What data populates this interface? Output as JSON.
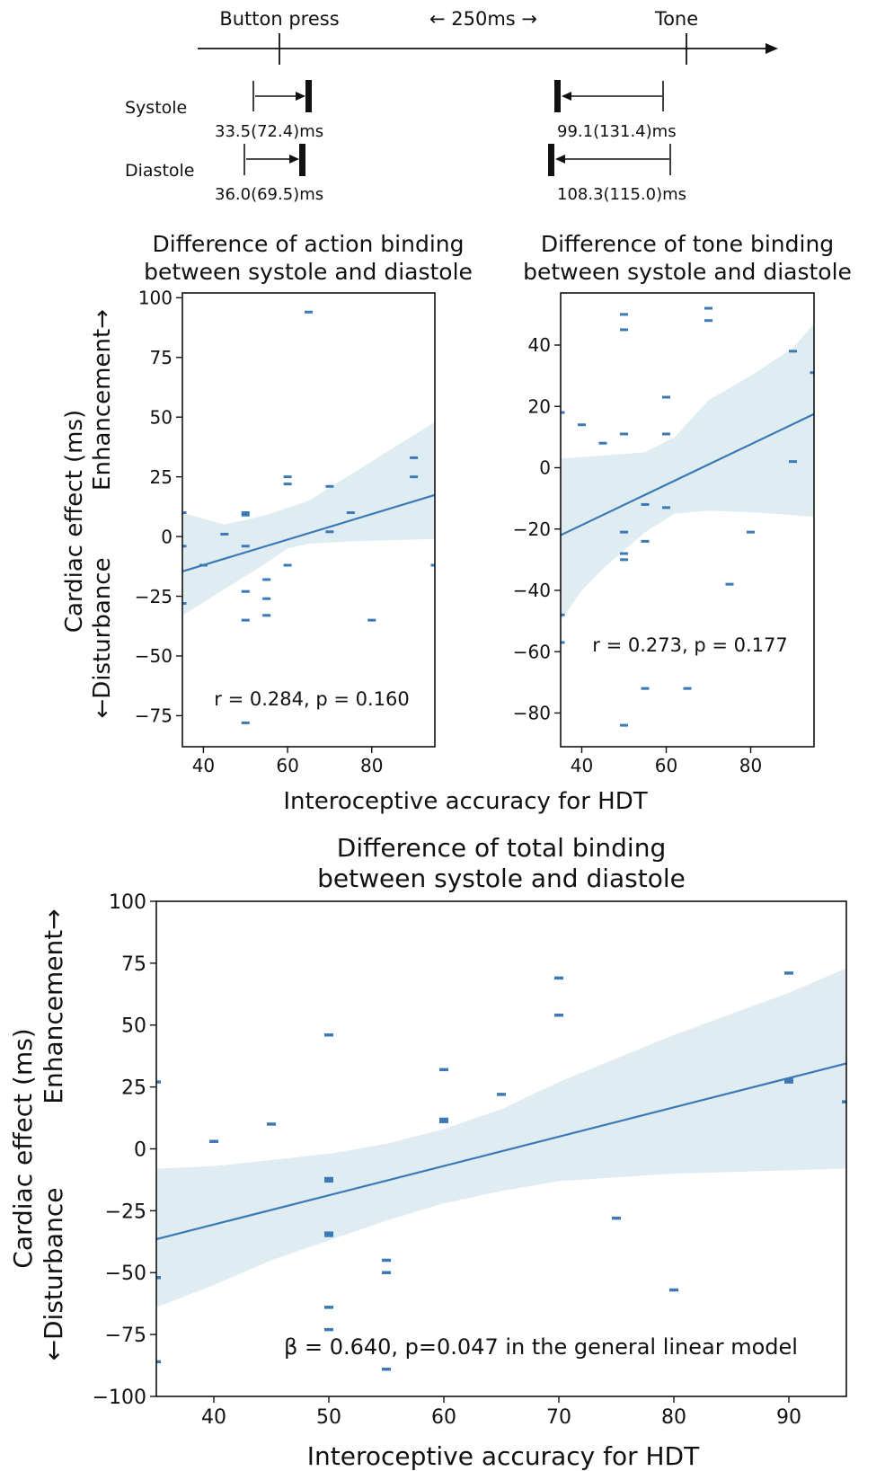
{
  "timeline": {
    "button_label": "Button press",
    "interval_label": "← 250ms →",
    "tone_label": "Tone",
    "systole_label": "Systole",
    "diastole_label": "Diastole",
    "systole_action": "33.5(72.4)ms",
    "systole_tone": "99.1(131.4)ms",
    "diastole_action": "36.0(69.5)ms",
    "diastole_tone": "108.3(115.0)ms"
  },
  "shared": {
    "ylabel_line1": "Cardiac effect (ms)",
    "ylabel_line2_top": "Enhancement→",
    "ylabel_line2_bottom": "←Disturbance",
    "xlabel": "Interoceptive accuracy for HDT"
  },
  "colors": {
    "points": "#3b7ab5",
    "fit": "#3b7ab5",
    "ci": "#c9dfea"
  },
  "chart_data": [
    {
      "id": "action",
      "type": "scatter",
      "title_line1": "Difference of action binding",
      "title_line2": "between systole and diastole",
      "annotation": "r = 0.284, p = 0.160",
      "xlim": [
        35,
        95
      ],
      "ylim": [
        -88,
        102
      ],
      "xticks": [
        40,
        60,
        80
      ],
      "yticks": [
        100,
        75,
        50,
        25,
        0,
        -25,
        -50,
        -75
      ],
      "fit": {
        "x": [
          35,
          95
        ],
        "y": [
          -14.6,
          17.4
        ]
      },
      "ci_upper": [
        [
          35,
          10
        ],
        [
          45,
          5
        ],
        [
          55,
          9
        ],
        [
          60,
          12
        ],
        [
          65,
          15
        ],
        [
          75,
          26
        ],
        [
          85,
          37
        ],
        [
          95,
          48
        ]
      ],
      "ci_lower": [
        [
          35,
          -33
        ],
        [
          45,
          -22
        ],
        [
          55,
          -11
        ],
        [
          60,
          -5
        ],
        [
          65,
          -3
        ],
        [
          75,
          -2
        ],
        [
          85,
          -1.5
        ],
        [
          95,
          -1
        ]
      ],
      "points": [
        [
          35,
          10
        ],
        [
          35,
          -4
        ],
        [
          35,
          -28
        ],
        [
          40,
          -12
        ],
        [
          45,
          1
        ],
        [
          50,
          10
        ],
        [
          50,
          9
        ],
        [
          50,
          -4
        ],
        [
          50,
          -23
        ],
        [
          50,
          -35
        ],
        [
          50,
          -78
        ],
        [
          55,
          -18
        ],
        [
          55,
          -26
        ],
        [
          55,
          -33
        ],
        [
          60,
          25
        ],
        [
          60,
          22
        ],
        [
          60,
          -12
        ],
        [
          65,
          94
        ],
        [
          70,
          21
        ],
        [
          70,
          2
        ],
        [
          75,
          10
        ],
        [
          80,
          -35
        ],
        [
          90,
          33
        ],
        [
          90,
          25
        ],
        [
          95,
          -12
        ]
      ]
    },
    {
      "id": "tone",
      "type": "scatter",
      "title_line1": "Difference of tone binding",
      "title_line2": "between systole and diastole",
      "annotation": "r = 0.273, p = 0.177",
      "xlim": [
        35,
        95
      ],
      "ylim": [
        -91,
        57
      ],
      "xticks": [
        40,
        60,
        80
      ],
      "yticks": [
        40,
        20,
        0,
        -20,
        -40,
        -60,
        -80
      ],
      "fit": {
        "x": [
          35,
          95
        ],
        "y": [
          -22,
          17.5
        ]
      },
      "ci_upper": [
        [
          35,
          3
        ],
        [
          45,
          4
        ],
        [
          55,
          5
        ],
        [
          62,
          10
        ],
        [
          70,
          22
        ],
        [
          80,
          30
        ],
        [
          90,
          39
        ],
        [
          95,
          47
        ]
      ],
      "ci_lower": [
        [
          35,
          -50
        ],
        [
          40,
          -40
        ],
        [
          45,
          -33
        ],
        [
          50,
          -27
        ],
        [
          55,
          -21
        ],
        [
          62,
          -15
        ],
        [
          70,
          -14
        ],
        [
          80,
          -14.5
        ],
        [
          95,
          -16
        ]
      ],
      "points": [
        [
          35,
          18
        ],
        [
          35,
          -48
        ],
        [
          35,
          -57
        ],
        [
          40,
          14
        ],
        [
          45,
          8
        ],
        [
          50,
          50
        ],
        [
          50,
          45
        ],
        [
          50,
          11
        ],
        [
          50,
          -21
        ],
        [
          50,
          -28
        ],
        [
          50,
          -30
        ],
        [
          50,
          -84
        ],
        [
          55,
          -12
        ],
        [
          55,
          -24
        ],
        [
          55,
          -72
        ],
        [
          60,
          23
        ],
        [
          60,
          11
        ],
        [
          60,
          -13
        ],
        [
          65,
          -72
        ],
        [
          70,
          52
        ],
        [
          70,
          48
        ],
        [
          75,
          -38
        ],
        [
          80,
          -21
        ],
        [
          90,
          38
        ],
        [
          90,
          2
        ],
        [
          95,
          31
        ]
      ]
    },
    {
      "id": "total",
      "type": "scatter",
      "title_line1": "Difference of total binding",
      "title_line2": "between systole and diastole",
      "annotation": "β = 0.640, p=0.047 in the general linear model",
      "xlim": [
        35,
        95
      ],
      "ylim": [
        -100,
        100
      ],
      "xticks": [
        40,
        50,
        60,
        70,
        80,
        90
      ],
      "yticks": [
        100,
        75,
        50,
        25,
        0,
        -25,
        -50,
        -75,
        -100
      ],
      "fit": {
        "x": [
          35,
          95
        ],
        "y": [
          -36.5,
          34.5
        ]
      },
      "ci_upper": [
        [
          35,
          -8
        ],
        [
          40,
          -7
        ],
        [
          50,
          -2
        ],
        [
          55,
          2
        ],
        [
          60,
          8
        ],
        [
          65,
          16
        ],
        [
          70,
          27
        ],
        [
          80,
          46
        ],
        [
          90,
          63
        ],
        [
          95,
          73
        ]
      ],
      "ci_lower": [
        [
          35,
          -64
        ],
        [
          40,
          -55
        ],
        [
          45,
          -45
        ],
        [
          50,
          -37
        ],
        [
          55,
          -29
        ],
        [
          60,
          -22
        ],
        [
          65,
          -17
        ],
        [
          70,
          -13
        ],
        [
          80,
          -10
        ],
        [
          95,
          -8
        ]
      ],
      "points": [
        [
          35,
          27
        ],
        [
          35,
          -52
        ],
        [
          35,
          -86
        ],
        [
          40,
          3
        ],
        [
          45,
          10
        ],
        [
          50,
          46
        ],
        [
          50,
          -12
        ],
        [
          50,
          -13
        ],
        [
          50,
          -34
        ],
        [
          50,
          -35
        ],
        [
          50,
          -64
        ],
        [
          50,
          -73
        ],
        [
          55,
          -45
        ],
        [
          55,
          -50
        ],
        [
          55,
          -89
        ],
        [
          60,
          32
        ],
        [
          60,
          12
        ],
        [
          60,
          11
        ],
        [
          65,
          22
        ],
        [
          70,
          69
        ],
        [
          70,
          54
        ],
        [
          75,
          -28
        ],
        [
          80,
          -57
        ],
        [
          90,
          71
        ],
        [
          90,
          28
        ],
        [
          90,
          27
        ],
        [
          95,
          19
        ]
      ]
    }
  ]
}
